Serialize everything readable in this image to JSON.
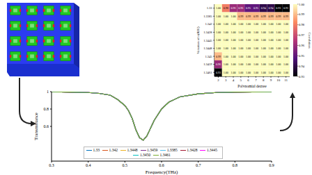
{
  "chart_data": [
    {
      "type": "line",
      "x_label": "Frequency(THz)",
      "y_label": "Transmittance",
      "x": [
        0.3,
        0.35,
        0.4,
        0.43,
        0.46,
        0.48,
        0.5,
        0.51,
        0.52,
        0.53,
        0.54,
        0.55,
        0.56,
        0.57,
        0.58,
        0.6,
        0.62,
        0.65,
        0.7,
        0.75,
        0.8,
        0.9
      ],
      "xlim": [
        0.3,
        0.9
      ],
      "xticks": [
        0.3,
        0.4,
        0.5,
        0.6,
        0.7,
        0.8,
        0.9
      ],
      "ylim": [
        0.2,
        1
      ],
      "yticks": [
        0.6,
        0.8,
        1
      ],
      "legend": "lower center",
      "series": [
        {
          "name": "1.33",
          "color": "#0072bd",
          "values": [
            0.998,
            0.995,
            0.99,
            0.98,
            0.96,
            0.91,
            0.84,
            0.78,
            0.69,
            0.56,
            0.47,
            0.44,
            0.49,
            0.58,
            0.67,
            0.8,
            0.88,
            0.94,
            0.975,
            0.99,
            0.995,
            0.998
          ]
        },
        {
          "name": "1.342",
          "color": "#d95319",
          "values": [
            0.998,
            0.995,
            0.99,
            0.98,
            0.96,
            0.91,
            0.84,
            0.78,
            0.69,
            0.56,
            0.47,
            0.44,
            0.49,
            0.58,
            0.67,
            0.8,
            0.88,
            0.94,
            0.975,
            0.99,
            0.995,
            0.998
          ]
        },
        {
          "name": "1.3448",
          "color": "#edb120",
          "values": [
            0.998,
            0.995,
            0.99,
            0.98,
            0.96,
            0.91,
            0.84,
            0.78,
            0.69,
            0.56,
            0.47,
            0.44,
            0.49,
            0.58,
            0.67,
            0.8,
            0.88,
            0.94,
            0.975,
            0.99,
            0.995,
            0.998
          ]
        },
        {
          "name": "1.3459",
          "color": "#7e2f8e",
          "values": [
            0.998,
            0.995,
            0.99,
            0.98,
            0.96,
            0.91,
            0.84,
            0.78,
            0.69,
            0.56,
            0.47,
            0.44,
            0.49,
            0.58,
            0.67,
            0.8,
            0.88,
            0.94,
            0.975,
            0.99,
            0.995,
            0.998
          ]
        },
        {
          "name": "1.3385",
          "color": "#4dbeee",
          "values": [
            0.998,
            0.995,
            0.99,
            0.98,
            0.96,
            0.91,
            0.84,
            0.78,
            0.69,
            0.56,
            0.47,
            0.44,
            0.49,
            0.58,
            0.67,
            0.8,
            0.88,
            0.94,
            0.975,
            0.99,
            0.995,
            0.998
          ]
        },
        {
          "name": "1.3428",
          "color": "#a2142f",
          "values": [
            0.998,
            0.995,
            0.99,
            0.98,
            0.96,
            0.91,
            0.84,
            0.78,
            0.69,
            0.56,
            0.47,
            0.44,
            0.49,
            0.58,
            0.67,
            0.8,
            0.88,
            0.94,
            0.975,
            0.99,
            0.995,
            0.998
          ]
        },
        {
          "name": "1.3445",
          "color": "#ff00ff",
          "values": [
            0.998,
            0.995,
            0.99,
            0.98,
            0.96,
            0.91,
            0.84,
            0.78,
            0.69,
            0.56,
            0.47,
            0.44,
            0.49,
            0.58,
            0.67,
            0.8,
            0.88,
            0.94,
            0.975,
            0.99,
            0.995,
            0.998
          ]
        },
        {
          "name": "1.3450",
          "color": "#00bfbf",
          "values": [
            0.998,
            0.995,
            0.99,
            0.98,
            0.96,
            0.91,
            0.84,
            0.78,
            0.69,
            0.56,
            0.47,
            0.44,
            0.49,
            0.58,
            0.67,
            0.8,
            0.88,
            0.94,
            0.975,
            0.99,
            0.995,
            0.998
          ]
        },
        {
          "name": "1.3461",
          "color": "#77ac30",
          "values": [
            0.998,
            0.995,
            0.99,
            0.98,
            0.96,
            0.91,
            0.84,
            0.78,
            0.69,
            0.56,
            0.47,
            0.44,
            0.49,
            0.58,
            0.67,
            0.8,
            0.88,
            0.94,
            0.975,
            0.99,
            0.995,
            0.998
          ]
        }
      ]
    },
    {
      "type": "heatmap",
      "x_label": "Polynomial degree",
      "y_label": "Variation of n(RIU)",
      "colorbar_label": "Correlation",
      "columns": [
        2,
        3,
        4,
        5,
        6,
        7,
        8,
        9,
        10,
        11
      ],
      "rows": [
        "1.33",
        "1.3385",
        "1.342",
        "1.3428",
        "1.3445",
        "1.3448",
        "1.345",
        "1.3459",
        "1.3461"
      ],
      "values": [
        [
          1,
          0.98,
          0.96,
          0.96,
          0.95,
          0.95,
          0.94,
          0.94,
          0.93,
          0.93
        ],
        [
          1,
          1,
          1,
          0.99,
          0.99,
          0.99,
          0.99,
          0.99,
          0.99,
          0.99
        ],
        [
          1,
          1,
          1,
          1,
          1,
          1,
          1,
          1,
          1,
          1
        ],
        [
          1,
          1,
          1,
          1,
          1,
          1,
          1,
          1,
          1,
          1
        ],
        [
          1,
          1,
          1,
          1,
          1,
          1,
          1,
          1,
          1,
          1
        ],
        [
          1,
          1,
          1,
          1,
          1,
          1,
          1,
          1,
          1,
          1
        ],
        [
          0.99,
          1,
          1,
          1,
          1,
          1,
          1,
          1,
          1,
          1
        ],
        [
          0.96,
          1,
          1,
          1,
          1,
          1,
          1,
          1,
          1,
          1
        ],
        [
          0.93,
          1,
          1,
          1,
          1,
          1,
          1,
          1,
          1,
          1
        ]
      ],
      "value_labels": [
        [
          "1.00",
          "0.98",
          "0.96",
          "0.96",
          "0.95",
          "0.95",
          "0.94",
          "0.94",
          "0.93",
          "0.93"
        ],
        [
          "1.00",
          "1.00",
          "1.00",
          "0.99",
          "0.99",
          "0.99",
          "0.99",
          "0.99",
          "0.99",
          "0.99"
        ],
        [
          "1.00",
          "1.00",
          "1.00",
          "1.00",
          "1.00",
          "1.00",
          "1.00",
          "1.00",
          "1.00",
          "1.00"
        ],
        [
          "1.00",
          "1.00",
          "1.00",
          "1.00",
          "1.00",
          "1.00",
          "1.00",
          "1.00",
          "1.00",
          "1.00"
        ],
        [
          "1.00",
          "1.00",
          "1.00",
          "1.00",
          "1.00",
          "1.00",
          "1.00",
          "1.00",
          "1.00",
          "1.00"
        ],
        [
          "1.00",
          "1.00",
          "1.00",
          "1.00",
          "1.00",
          "1.00",
          "1.00",
          "1.00",
          "1.00",
          "1.00"
        ],
        [
          "0.99",
          "1.00",
          "1.00",
          "1.00",
          "1.00",
          "1.00",
          "1.00",
          "1.00",
          "1.00",
          "1.00"
        ],
        [
          "0.96",
          "1.00",
          "1.00",
          "1.00",
          "1.00",
          "1.00",
          "1.00",
          "1.00",
          "1.00",
          "1.00"
        ],
        [
          "0.93",
          "1.00",
          "1.00",
          "1.00",
          "1.00",
          "1.00",
          "1.00",
          "1.00",
          "1.00",
          "1.00"
        ]
      ],
      "colorbar_range": [
        0.93,
        1
      ],
      "colorbar_ticks": [
        0.93,
        0.94,
        0.95,
        0.96,
        0.97,
        0.98,
        0.99,
        {
          "value": 1,
          "label": "1.00"
        }
      ]
    }
  ]
}
